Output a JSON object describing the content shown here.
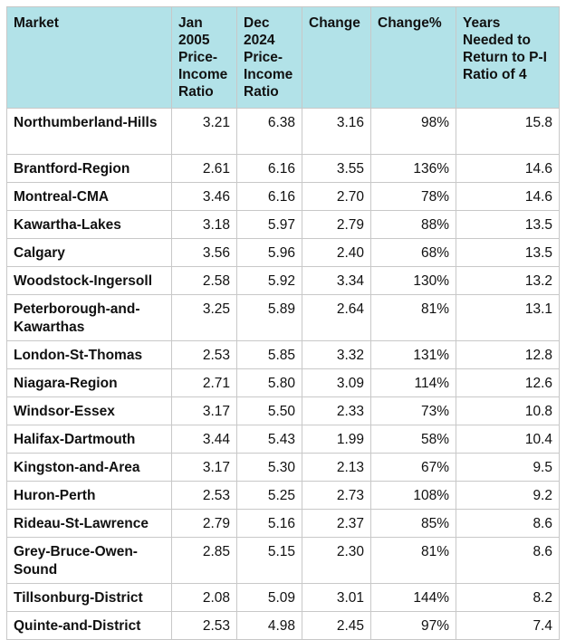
{
  "headers": {
    "market": "Market",
    "jan2005": "Jan 2005 Price-Income Ratio",
    "dec2024": "Dec 2024 Price-Income Ratio",
    "change": "Change",
    "change_pct": "Change%",
    "years": "Years Needed to Return to P-I Ratio of 4"
  },
  "rows": [
    {
      "market": "Northumberland-Hills",
      "jan2005": "3.21",
      "dec2024": "6.38",
      "change": "3.16",
      "change_pct": "98%",
      "years": "15.8"
    },
    {
      "market": "Brantford-Region",
      "jan2005": "2.61",
      "dec2024": "6.16",
      "change": "3.55",
      "change_pct": "136%",
      "years": "14.6"
    },
    {
      "market": "Montreal-CMA",
      "jan2005": "3.46",
      "dec2024": "6.16",
      "change": "2.70",
      "change_pct": "78%",
      "years": "14.6"
    },
    {
      "market": "Kawartha-Lakes",
      "jan2005": "3.18",
      "dec2024": "5.97",
      "change": "2.79",
      "change_pct": "88%",
      "years": "13.5"
    },
    {
      "market": "Calgary",
      "jan2005": "3.56",
      "dec2024": "5.96",
      "change": "2.40",
      "change_pct": "68%",
      "years": "13.5"
    },
    {
      "market": "Woodstock-Ingersoll",
      "jan2005": "2.58",
      "dec2024": "5.92",
      "change": "3.34",
      "change_pct": "130%",
      "years": "13.2"
    },
    {
      "market": "Peterborough-and-Kawarthas",
      "jan2005": "3.25",
      "dec2024": "5.89",
      "change": "2.64",
      "change_pct": "81%",
      "years": "13.1"
    },
    {
      "market": "London-St-Thomas",
      "jan2005": "2.53",
      "dec2024": "5.85",
      "change": "3.32",
      "change_pct": "131%",
      "years": "12.8"
    },
    {
      "market": "Niagara-Region",
      "jan2005": "2.71",
      "dec2024": "5.80",
      "change": "3.09",
      "change_pct": "114%",
      "years": "12.6"
    },
    {
      "market": "Windsor-Essex",
      "jan2005": "3.17",
      "dec2024": "5.50",
      "change": "2.33",
      "change_pct": "73%",
      "years": "10.8"
    },
    {
      "market": "Halifax-Dartmouth",
      "jan2005": "3.44",
      "dec2024": "5.43",
      "change": "1.99",
      "change_pct": "58%",
      "years": "10.4"
    },
    {
      "market": "Kingston-and-Area",
      "jan2005": "3.17",
      "dec2024": "5.30",
      "change": "2.13",
      "change_pct": "67%",
      "years": "9.5"
    },
    {
      "market": "Huron-Perth",
      "jan2005": "2.53",
      "dec2024": "5.25",
      "change": "2.73",
      "change_pct": "108%",
      "years": "9.2"
    },
    {
      "market": "Rideau-St-Lawrence",
      "jan2005": "2.79",
      "dec2024": "5.16",
      "change": "2.37",
      "change_pct": "85%",
      "years": "8.6"
    },
    {
      "market": "Grey-Bruce-Owen-Sound",
      "jan2005": "2.85",
      "dec2024": "5.15",
      "change": "2.30",
      "change_pct": "81%",
      "years": "8.6"
    },
    {
      "market": "Tillsonburg-District",
      "jan2005": "2.08",
      "dec2024": "5.09",
      "change": "3.01",
      "change_pct": "144%",
      "years": "8.2"
    },
    {
      "market": "Quinte-and-District",
      "jan2005": "2.53",
      "dec2024": "4.98",
      "change": "2.45",
      "change_pct": "97%",
      "years": "7.4"
    }
  ]
}
